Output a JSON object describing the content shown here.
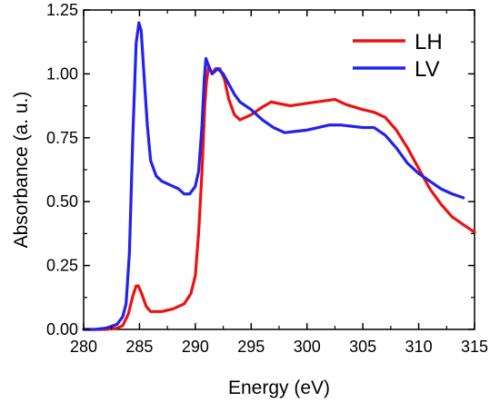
{
  "chart_data": {
    "type": "line",
    "title": "",
    "xlabel": "Energy (eV)",
    "ylabel": "Absorbance (a. u.)",
    "xlim": [
      280,
      315
    ],
    "ylim": [
      0,
      1.25
    ],
    "x_ticks": [
      280,
      285,
      290,
      295,
      300,
      305,
      310,
      315
    ],
    "x_tick_labels": [
      "280",
      "285",
      "290",
      "295",
      "300",
      "305",
      "310",
      "315"
    ],
    "y_ticks": [
      0,
      0.25,
      0.5,
      0.75,
      1.0,
      1.25
    ],
    "y_tick_labels": [
      "0.00",
      "0.25",
      "0.50",
      "0.75",
      "1.00",
      "1.25"
    ],
    "grid": false,
    "legend_position": "top-right",
    "series": [
      {
        "name": "LH",
        "color": "#ee1111",
        "points": [
          [
            280,
            0
          ],
          [
            282,
            0
          ],
          [
            283,
            0.005
          ],
          [
            283.5,
            0.015
          ],
          [
            284,
            0.06
          ],
          [
            284.4,
            0.13
          ],
          [
            284.7,
            0.17
          ],
          [
            284.9,
            0.17
          ],
          [
            285.2,
            0.14
          ],
          [
            285.6,
            0.09
          ],
          [
            286,
            0.07
          ],
          [
            287,
            0.07
          ],
          [
            288,
            0.08
          ],
          [
            289,
            0.1
          ],
          [
            289.6,
            0.14
          ],
          [
            290,
            0.21
          ],
          [
            290.3,
            0.38
          ],
          [
            290.6,
            0.62
          ],
          [
            290.85,
            0.88
          ],
          [
            291,
            0.97
          ],
          [
            291.2,
            1.03
          ],
          [
            291.5,
            1.0
          ],
          [
            291.8,
            1.02
          ],
          [
            292.2,
            1.02
          ],
          [
            292.6,
            0.98
          ],
          [
            293,
            0.9
          ],
          [
            293.5,
            0.84
          ],
          [
            294,
            0.82
          ],
          [
            295,
            0.84
          ],
          [
            296,
            0.87
          ],
          [
            296.8,
            0.89
          ],
          [
            298.5,
            0.875
          ],
          [
            300,
            0.885
          ],
          [
            302.5,
            0.9
          ],
          [
            303.5,
            0.88
          ],
          [
            305,
            0.86
          ],
          [
            306,
            0.85
          ],
          [
            307,
            0.83
          ],
          [
            308,
            0.78
          ],
          [
            309,
            0.71
          ],
          [
            310,
            0.63
          ],
          [
            311,
            0.55
          ],
          [
            312,
            0.49
          ],
          [
            313,
            0.44
          ],
          [
            314,
            0.41
          ],
          [
            315,
            0.38
          ]
        ]
      },
      {
        "name": "LV",
        "color": "#2222ee",
        "points": [
          [
            280,
            0
          ],
          [
            281,
            0
          ],
          [
            282,
            0.005
          ],
          [
            283,
            0.02
          ],
          [
            283.5,
            0.05
          ],
          [
            283.8,
            0.1
          ],
          [
            284.1,
            0.3
          ],
          [
            284.4,
            0.75
          ],
          [
            284.7,
            1.12
          ],
          [
            284.95,
            1.2
          ],
          [
            285.15,
            1.17
          ],
          [
            285.4,
            1.0
          ],
          [
            285.7,
            0.8
          ],
          [
            286,
            0.66
          ],
          [
            286.5,
            0.6
          ],
          [
            287,
            0.58
          ],
          [
            288,
            0.56
          ],
          [
            288.5,
            0.55
          ],
          [
            289,
            0.53
          ],
          [
            289.5,
            0.53
          ],
          [
            290,
            0.56
          ],
          [
            290.3,
            0.62
          ],
          [
            290.6,
            0.8
          ],
          [
            290.8,
            0.98
          ],
          [
            290.95,
            1.06
          ],
          [
            291.2,
            1.03
          ],
          [
            291.5,
            1.0
          ],
          [
            292,
            1.02
          ],
          [
            292.5,
            1.0
          ],
          [
            293,
            0.96
          ],
          [
            293.5,
            0.92
          ],
          [
            294,
            0.89
          ],
          [
            295,
            0.86
          ],
          [
            296,
            0.82
          ],
          [
            297,
            0.79
          ],
          [
            298,
            0.77
          ],
          [
            299,
            0.775
          ],
          [
            300,
            0.78
          ],
          [
            301,
            0.79
          ],
          [
            302,
            0.8
          ],
          [
            303,
            0.8
          ],
          [
            304,
            0.795
          ],
          [
            305,
            0.79
          ],
          [
            306,
            0.79
          ],
          [
            307,
            0.76
          ],
          [
            308,
            0.71
          ],
          [
            309,
            0.65
          ],
          [
            310,
            0.61
          ],
          [
            311,
            0.58
          ],
          [
            312,
            0.55
          ],
          [
            313,
            0.53
          ],
          [
            314,
            0.515
          ]
        ]
      }
    ]
  }
}
